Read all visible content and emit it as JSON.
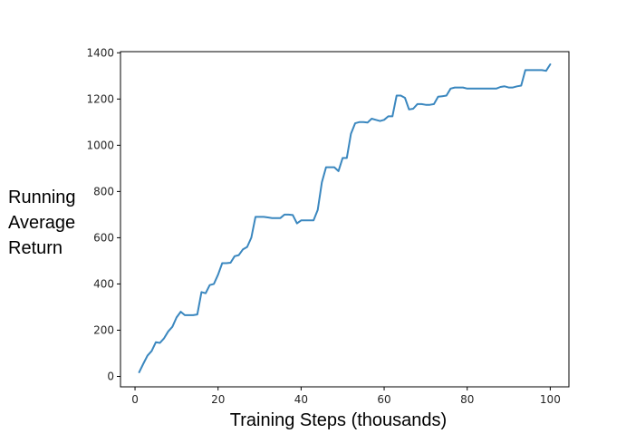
{
  "chart_data": {
    "type": "line",
    "title": "",
    "xlabel": "Training Steps (thousands)",
    "ylabel_lines": [
      "Running",
      "Average",
      "Return"
    ],
    "xlim": [
      -3.5,
      104.5
    ],
    "ylim": [
      -45,
      1405
    ],
    "xticks": [
      0,
      20,
      40,
      60,
      80,
      100
    ],
    "yticks": [
      0,
      200,
      400,
      600,
      800,
      1000,
      1200,
      1400
    ],
    "grid": false,
    "legend": "none",
    "series": [
      {
        "color": "#3a87bf",
        "x": [
          1,
          2,
          3,
          4,
          5,
          6,
          7,
          8,
          9,
          10,
          11,
          12,
          13,
          14,
          15,
          16,
          17,
          18,
          19,
          20,
          21,
          22,
          23,
          24,
          25,
          26,
          27,
          28,
          29,
          30,
          31,
          32,
          33,
          34,
          35,
          36,
          37,
          38,
          39,
          40,
          41,
          42,
          43,
          44,
          45,
          46,
          47,
          48,
          49,
          50,
          51,
          52,
          53,
          54,
          55,
          56,
          57,
          58,
          59,
          60,
          61,
          62,
          63,
          64,
          65,
          66,
          67,
          68,
          69,
          70,
          71,
          72,
          73,
          74,
          75,
          76,
          77,
          78,
          79,
          80,
          81,
          82,
          83,
          84,
          85,
          86,
          87,
          88,
          89,
          90,
          91,
          92,
          93,
          94,
          95,
          96,
          97,
          98,
          99,
          100
        ],
        "y": [
          18,
          55,
          90,
          110,
          148,
          145,
          165,
          195,
          215,
          255,
          280,
          265,
          265,
          265,
          268,
          365,
          360,
          395,
          400,
          440,
          490,
          490,
          492,
          520,
          525,
          550,
          560,
          600,
          690,
          690,
          690,
          688,
          685,
          685,
          685,
          700,
          700,
          698,
          662,
          675,
          675,
          675,
          675,
          720,
          840,
          905,
          905,
          905,
          888,
          945,
          945,
          1050,
          1095,
          1100,
          1100,
          1098,
          1115,
          1110,
          1105,
          1110,
          1125,
          1125,
          1215,
          1215,
          1205,
          1155,
          1158,
          1178,
          1178,
          1175,
          1175,
          1178,
          1210,
          1212,
          1215,
          1245,
          1250,
          1250,
          1250,
          1245,
          1245,
          1245,
          1245,
          1245,
          1245,
          1245,
          1245,
          1252,
          1255,
          1250,
          1250,
          1255,
          1258,
          1325,
          1325,
          1325,
          1325,
          1325,
          1322,
          1350
        ]
      }
    ]
  }
}
